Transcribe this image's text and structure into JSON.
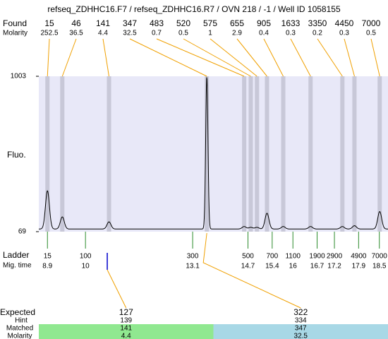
{
  "chart_data": {
    "type": "electropherogram",
    "title": "refseq_ZDHHC16.F7 / refseq_ZDHHC16.R7 / OVN 218 / -1 / Well ID 1058155",
    "found_label": "Found",
    "molarity_label": "Molarity",
    "y_label": "Fluo.",
    "ladder_label": "Ladder",
    "mig_time_label": "Mig. time",
    "expected_label": "Expected",
    "hint_label": "Hint",
    "matched_label": "Matched",
    "molarity_row_label": "Molarity",
    "ylim": [
      69,
      1003
    ],
    "yticks": [
      69,
      1003
    ],
    "xlim": [
      8.65,
      18.75
    ],
    "baseline": 85,
    "trace_color": "#000000",
    "plot_color": "#e8e8f8",
    "band_color": "#c8c8d8",
    "connector_color": "#f0a000",
    "ladder_color": "#2a8a2a",
    "peaks": [
      {
        "size": 15,
        "molarity": 252.5,
        "time": 8.9,
        "height": 315
      },
      {
        "size": 46,
        "molarity": 36.5,
        "time": 9.33,
        "height": 158
      },
      {
        "size": 141,
        "molarity": 4.4,
        "time": 10.68,
        "height": 128
      },
      {
        "size": 347,
        "molarity": 32.5,
        "time": 13.51,
        "height": 1003
      },
      {
        "size": 483,
        "molarity": 0.7,
        "time": 14.59,
        "height": 100
      },
      {
        "size": 520,
        "molarity": 0.5,
        "time": 14.78,
        "height": 95
      },
      {
        "size": 575,
        "molarity": 1,
        "time": 14.96,
        "height": 95
      },
      {
        "size": 655,
        "molarity": 2.9,
        "time": 15.25,
        "height": 180
      },
      {
        "size": 905,
        "molarity": 0.4,
        "time": 15.72,
        "height": 100
      },
      {
        "size": 1633,
        "molarity": 0.3,
        "time": 16.51,
        "height": 100
      },
      {
        "size": 3350,
        "molarity": 0.2,
        "time": 17.43,
        "height": 100
      },
      {
        "size": 4450,
        "molarity": 0.3,
        "time": 17.78,
        "height": 105
      },
      {
        "size": 7000,
        "molarity": 0.5,
        "time": 18.51,
        "height": 190
      }
    ],
    "ladder": [
      {
        "size": 15,
        "time": 8.9
      },
      {
        "size": 100,
        "time": 10
      },
      {
        "size": 300,
        "time": 13.1
      },
      {
        "size": 500,
        "time": 14.7
      },
      {
        "size": 700,
        "time": 15.4
      },
      {
        "size": 1100,
        "time": 16
      },
      {
        "size": 1900,
        "time": 16.7
      },
      {
        "size": 2900,
        "time": 17.2
      },
      {
        "size": 4900,
        "time": 17.9
      },
      {
        "size": 7000,
        "time": 18.5
      }
    ],
    "expected": [
      {
        "size": 127,
        "hint": 139,
        "matched": 141,
        "molarity": 4.4,
        "time": 10.63,
        "color": "#90e890",
        "tick_color": "#0000cc"
      },
      {
        "size": 322,
        "hint": 334,
        "matched": 347,
        "molarity": 32.5,
        "time": 13.51,
        "color": "#a8d8e6",
        "tick_color": "#f0a000"
      }
    ]
  }
}
